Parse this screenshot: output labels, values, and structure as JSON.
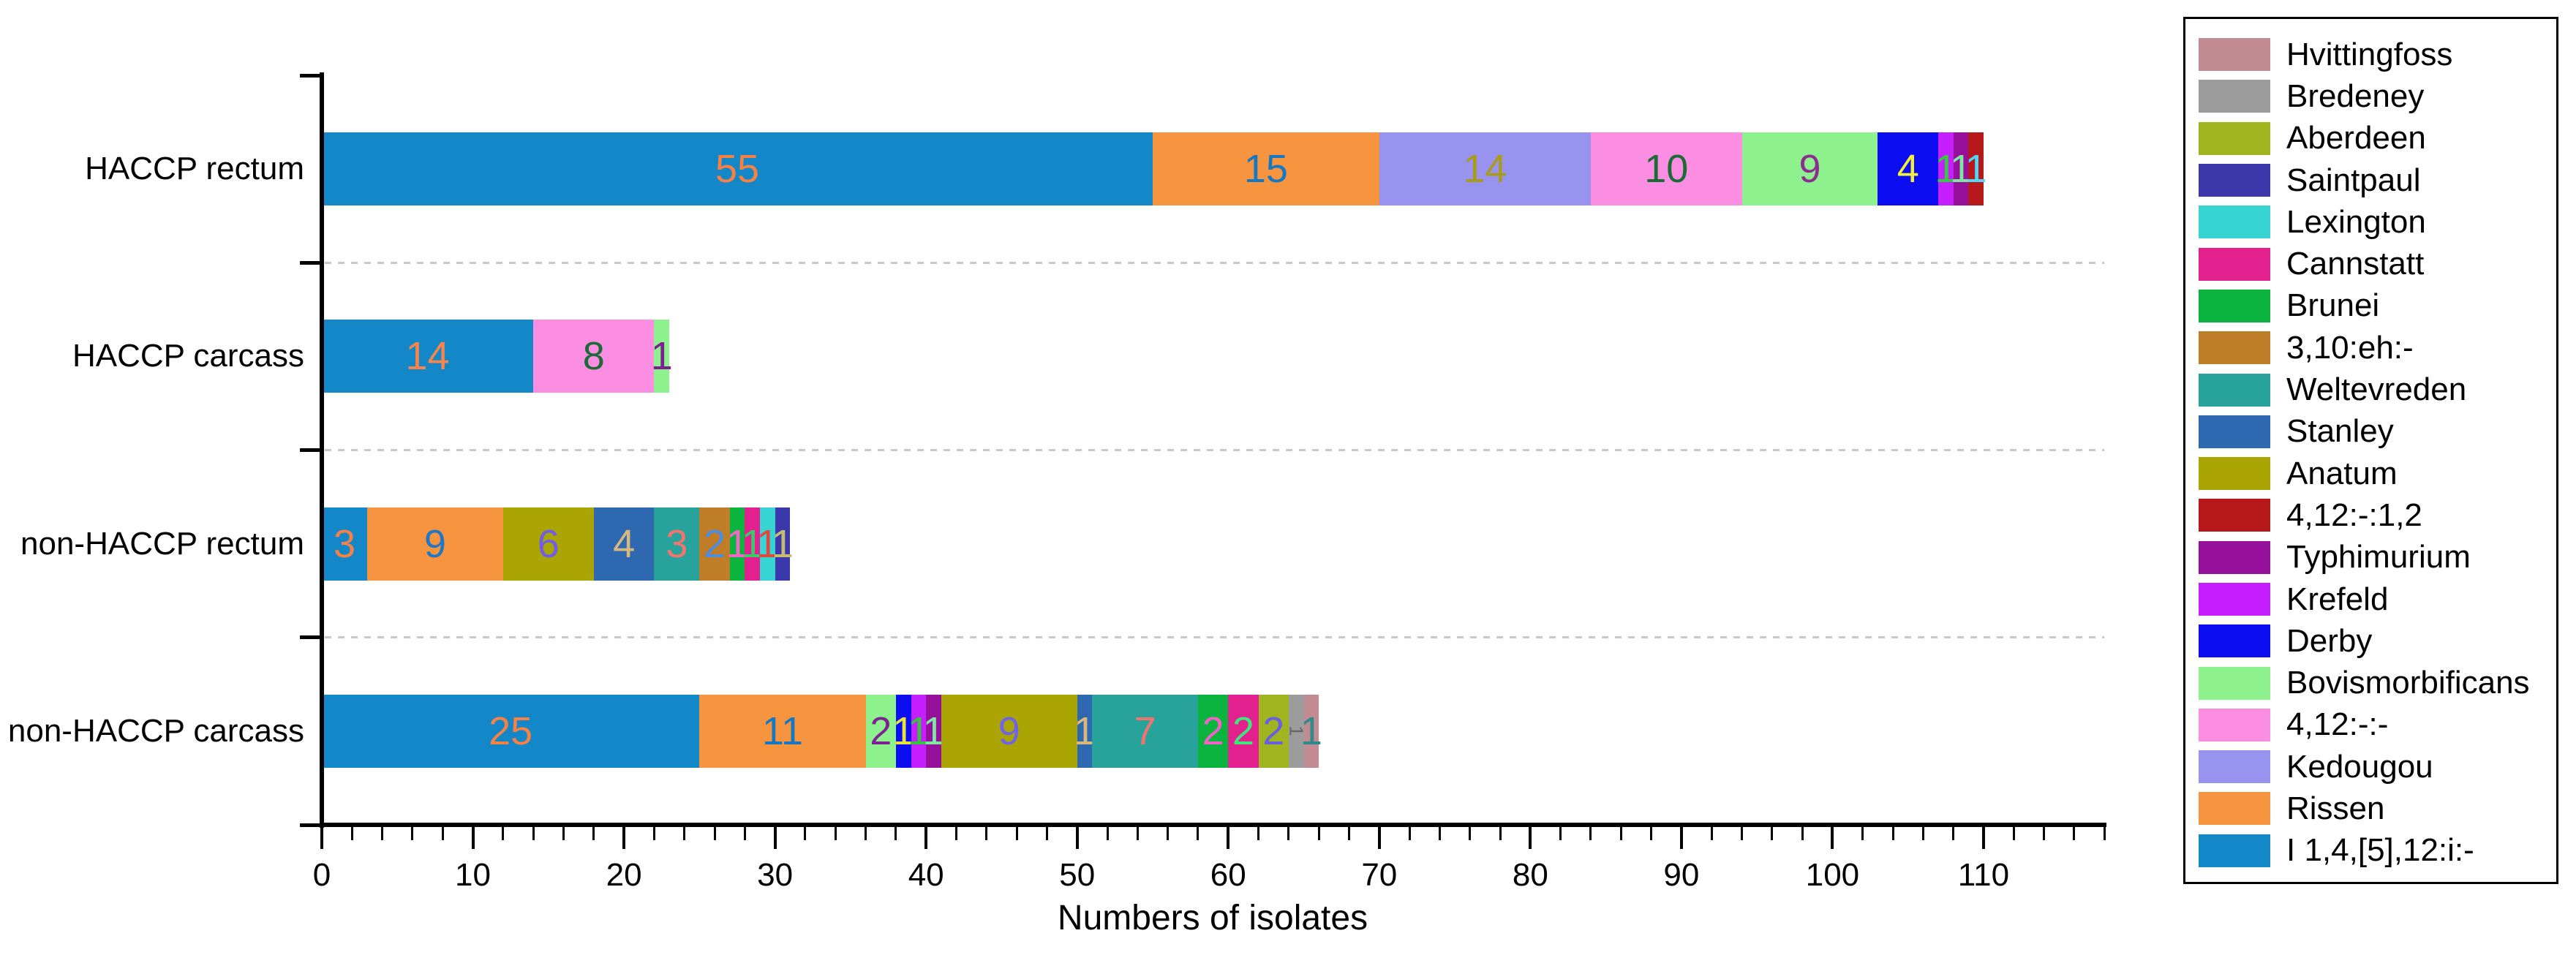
{
  "chart_data": {
    "type": "bar",
    "orientation": "horizontal",
    "stacked": true,
    "xlabel": "Numbers of isolates",
    "x_ticks": [
      0,
      10,
      20,
      30,
      40,
      50,
      60,
      70,
      80,
      90,
      100,
      110
    ],
    "x_max": 118,
    "x_minor_step": 2,
    "grid": "dotted horizontal lines between category rows",
    "legend_position": "right",
    "categories": [
      "HACCP rectum",
      "HACCP carcass",
      "non-HACCP rectum",
      "non-HACCP carcass"
    ],
    "legend": [
      {
        "label": "Hvittingfoss",
        "color": "#c28b91"
      },
      {
        "label": "Bredeney",
        "color": "#9c9c9c"
      },
      {
        "label": "Aberdeen",
        "color": "#9fb41e"
      },
      {
        "label": "Saintpaul",
        "color": "#3b38ac"
      },
      {
        "label": "Lexington",
        "color": "#38d4d4"
      },
      {
        "label": "Cannstatt",
        "color": "#e2208e"
      },
      {
        "label": "Brunei",
        "color": "#0ab43e"
      },
      {
        "label": "3,10:eh:-",
        "color": "#c07d28"
      },
      {
        "label": "Weltevreden",
        "color": "#28a39c"
      },
      {
        "label": "Stanley",
        "color": "#2e68b0"
      },
      {
        "label": "Anatum",
        "color": "#aaa405"
      },
      {
        "label": "4,12:-:1,2",
        "color": "#b7191b"
      },
      {
        "label": "Typhimurium",
        "color": "#97109b"
      },
      {
        "label": "Krefeld",
        "color": "#c51fff"
      },
      {
        "label": "Derby",
        "color": "#0d0df2"
      },
      {
        "label": "Bovismorbificans",
        "color": "#8df28d"
      },
      {
        "label": "4,12:-:-",
        "color": "#fb8de2"
      },
      {
        "label": "Kedougou",
        "color": "#9793ef"
      },
      {
        "label": "Rissen",
        "color": "#f69440"
      },
      {
        "label": "I 1,4,[5],12:i:-",
        "color": "#1487c8"
      }
    ],
    "bars": [
      {
        "category": "HACCP rectum",
        "total": 110,
        "segments": [
          {
            "serovar": "I 1,4,[5],12:i:-",
            "value": 55,
            "label_color": "#f58244"
          },
          {
            "serovar": "Rissen",
            "value": 15,
            "label_color": "#1778c2"
          },
          {
            "serovar": "Kedougou",
            "value": 14,
            "label_color": "#a89b1a"
          },
          {
            "serovar": "4,12:-:-",
            "value": 10,
            "label_color": "#1b6b35"
          },
          {
            "serovar": "Bovismorbificans",
            "value": 9,
            "label_color": "#8b2f8f"
          },
          {
            "serovar": "Derby",
            "value": 4,
            "label_color": "#f2ef38"
          },
          {
            "serovar": "Krefeld",
            "value": 1,
            "label_color": "#35c93f"
          },
          {
            "serovar": "Typhimurium",
            "value": 1,
            "label_color": "#7de8a0"
          },
          {
            "serovar": "4,12:-:1,2",
            "value": 1,
            "label_color": "#4fd7f7"
          }
        ]
      },
      {
        "category": "HACCP carcass",
        "total": 23,
        "segments": [
          {
            "serovar": "I 1,4,[5],12:i:-",
            "value": 14,
            "label_color": "#f5854a"
          },
          {
            "serovar": "4,12:-:-",
            "value": 8,
            "label_color": "#1a6b35"
          },
          {
            "serovar": "Bovismorbificans",
            "value": 1,
            "label_color": "#7c1f8f"
          }
        ]
      },
      {
        "category": "non-HACCP rectum",
        "total": 31,
        "segments": [
          {
            "serovar": "I 1,4,[5],12:i:-",
            "value": 3,
            "label_color": "#f58244"
          },
          {
            "serovar": "Rissen",
            "value": 9,
            "label_color": "#2277c4"
          },
          {
            "serovar": "Anatum",
            "value": 6,
            "label_color": "#6f5ce8"
          },
          {
            "serovar": "Stanley",
            "value": 4,
            "label_color": "#d8b77e"
          },
          {
            "serovar": "Weltevreden",
            "value": 3,
            "label_color": "#f3736f"
          },
          {
            "serovar": "3,10:eh:-",
            "value": 2,
            "label_color": "#4b8de0"
          },
          {
            "serovar": "Brunei",
            "value": 1,
            "label_color": "#f567c5"
          },
          {
            "serovar": "Cannstatt",
            "value": 1,
            "label_color": "#3dc86b"
          },
          {
            "serovar": "Lexington",
            "value": 1,
            "label_color": "#e0483e"
          },
          {
            "serovar": "Saintpaul",
            "value": 1,
            "label_color": "#c5bb72"
          }
        ]
      },
      {
        "category": "non-HACCP carcass",
        "total": 66,
        "segments": [
          {
            "serovar": "I 1,4,[5],12:i:-",
            "value": 25,
            "label_color": "#f58244"
          },
          {
            "serovar": "Rissen",
            "value": 11,
            "label_color": "#1778c2"
          },
          {
            "serovar": "Bovismorbificans",
            "value": 2,
            "label_color": "#7c2391"
          },
          {
            "serovar": "Derby",
            "value": 1,
            "label_color": "#e8e23c"
          },
          {
            "serovar": "Krefeld",
            "value": 1,
            "label_color": "#37c43c"
          },
          {
            "serovar": "Typhimurium",
            "value": 1,
            "label_color": "#7fe8a5"
          },
          {
            "serovar": "Anatum",
            "value": 9,
            "label_color": "#6f63e8"
          },
          {
            "serovar": "Stanley",
            "value": 1,
            "label_color": "#d9b87c"
          },
          {
            "serovar": "Weltevreden",
            "value": 7,
            "label_color": "#f4726c"
          },
          {
            "serovar": "Brunei",
            "value": 2,
            "label_color": "#f560c8"
          },
          {
            "serovar": "Cannstatt",
            "value": 2,
            "label_color": "#3ee87d"
          },
          {
            "serovar": "Aberdeen",
            "value": 2,
            "label_color": "#6a5fe0"
          },
          {
            "serovar": "Bredeney",
            "value": 1,
            "label_color": "#666666",
            "label_rotated": true
          },
          {
            "serovar": "Hvittingfoss",
            "value": 1,
            "label_color": "#2e8b8b"
          }
        ]
      }
    ]
  }
}
